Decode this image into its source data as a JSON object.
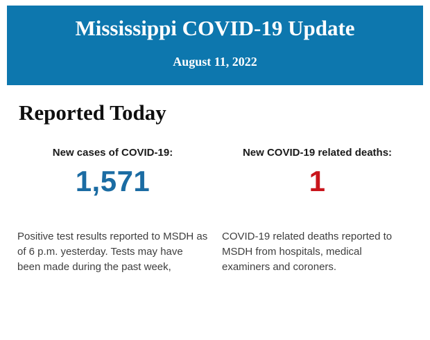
{
  "banner": {
    "title": "Mississippi COVID-19 Update",
    "date": "August 11, 2022",
    "background_color": "#0d77ae",
    "text_color": "#ffffff"
  },
  "section": {
    "heading": "Reported Today"
  },
  "stats": [
    {
      "label": "New cases of COVID-19:",
      "value": "1,571",
      "value_color": "#1b6ca3",
      "description": "Positive test results reported to MSDH as of 6 p.m. yesterday. Tests may have been made during the past week,"
    },
    {
      "label": "New COVID-19 related deaths:",
      "value": "1",
      "value_color": "#c9151c",
      "description": "COVID-19 related deaths reported to MSDH from hospitals, medical examiners and coroners."
    }
  ]
}
